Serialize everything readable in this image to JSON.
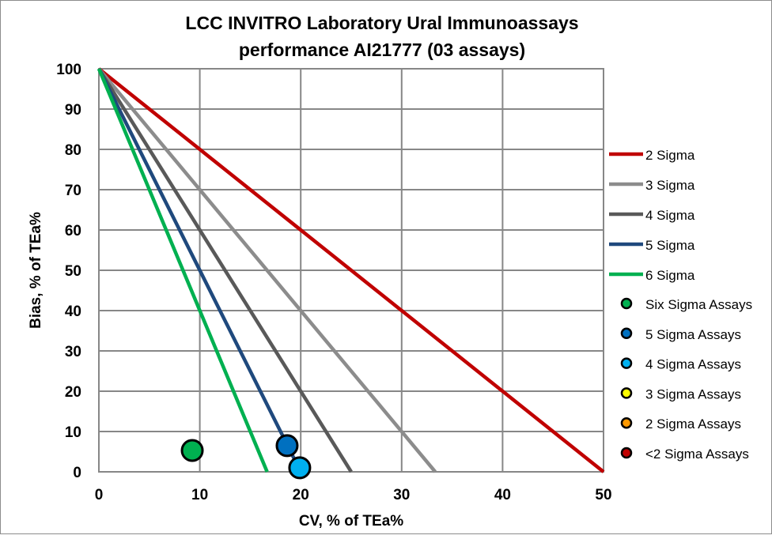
{
  "chart_data": {
    "type": "scatter",
    "title_lines": [
      "LCC INVITRO Laboratory Ural Immunoassays",
      "performance AI21777 (03 assays)"
    ],
    "xlabel": "CV, % of TEa%",
    "ylabel": "Bias, % of TEa%",
    "xlim": [
      0,
      50
    ],
    "ylim": [
      0,
      100
    ],
    "xticks": [
      0,
      10,
      20,
      30,
      40,
      50
    ],
    "yticks": [
      0,
      10,
      20,
      30,
      40,
      50,
      60,
      70,
      80,
      90,
      100
    ],
    "grid": true,
    "legend_position": "right",
    "lines": [
      {
        "name": "2 Sigma",
        "color": "#c00000",
        "points": [
          [
            0,
            100
          ],
          [
            50,
            0
          ]
        ]
      },
      {
        "name": "3 Sigma",
        "color": "#8c8c8c",
        "points": [
          [
            0,
            100
          ],
          [
            33.33,
            0
          ]
        ]
      },
      {
        "name": "4 Sigma",
        "color": "#595959",
        "points": [
          [
            0,
            100
          ],
          [
            25,
            0
          ]
        ]
      },
      {
        "name": "5 Sigma",
        "color": "#1f497d",
        "points": [
          [
            0,
            100
          ],
          [
            20,
            0
          ]
        ]
      },
      {
        "name": "6 Sigma",
        "color": "#00b050",
        "points": [
          [
            0,
            100
          ],
          [
            16.67,
            0
          ]
        ]
      }
    ],
    "series": [
      {
        "name": "Six Sigma Assays",
        "color": "#00b050",
        "points": [
          [
            9.25,
            5.3
          ]
        ]
      },
      {
        "name": "5 Sigma Assays",
        "color": "#0070c0",
        "points": [
          [
            18.65,
            6.5
          ]
        ]
      },
      {
        "name": "4 Sigma Assays",
        "color": "#00b0f0",
        "points": [
          [
            19.9,
            1.0
          ]
        ]
      },
      {
        "name": "3 Sigma Assays",
        "color": "#ffff00",
        "points": []
      },
      {
        "name": "2 Sigma Assays",
        "color": "#ff9900",
        "points": []
      },
      {
        "name": "<2 Sigma Assays",
        "color": "#c00000",
        "points": []
      }
    ]
  }
}
